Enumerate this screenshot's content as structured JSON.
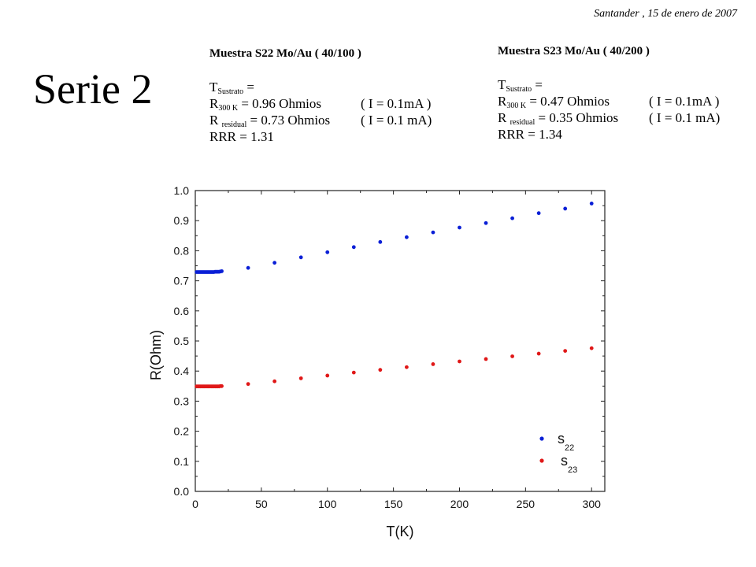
{
  "header": {
    "date": "Santander , 15 de enero de 2007",
    "title": "Serie 2"
  },
  "samples": [
    {
      "name": "Muestra S22 Mo/Au ( 40/100 )",
      "t_sustrato": {
        "symbol": "T",
        "sub": "Sustrato",
        "rest": " ="
      },
      "r300": {
        "symbol": "R",
        "sub": "300 K",
        "rest": " = 0.96 Ohmios",
        "cond": "( I = 0.1mA )"
      },
      "rres": {
        "symbol": "R ",
        "sub": "residual",
        "rest": " = 0.73 Ohmios",
        "cond": "( I = 0.1 mA)"
      },
      "rrr": "RRR = 1.31"
    },
    {
      "name": "Muestra S23 Mo/Au ( 40/200 )",
      "t_sustrato": {
        "symbol": "T",
        "sub": "Sustrato",
        "rest": " ="
      },
      "r300": {
        "symbol": "R",
        "sub": "300 K",
        "rest": " = 0.47 Ohmios",
        "cond": "( I = 0.1mA )"
      },
      "rres": {
        "symbol": "R ",
        "sub": "residual",
        "rest": " = 0.35 Ohmios",
        "cond": "( I = 0.1 mA)"
      },
      "rrr": "RRR = 1.34"
    }
  ],
  "chart_data": {
    "type": "scatter",
    "title": "",
    "xlabel": "T(K)",
    "ylabel": "R(Ohm)",
    "xlim": [
      0,
      310
    ],
    "ylim": [
      0,
      1.0
    ],
    "xticks": [
      0,
      50,
      100,
      150,
      200,
      250,
      300
    ],
    "yticks": [
      0.0,
      0.1,
      0.2,
      0.3,
      0.4,
      0.5,
      0.6,
      0.7,
      0.8,
      0.9,
      1.0
    ],
    "legend_position": "bottom-right",
    "series": [
      {
        "name": "s",
        "name_sub": "22",
        "color": "#0a1fd6",
        "x": [
          1,
          2,
          3,
          4,
          5,
          6,
          7,
          8,
          9,
          10,
          11,
          12,
          13,
          14,
          15,
          16,
          17,
          18,
          19,
          20,
          40,
          60,
          80,
          100,
          120,
          140,
          160,
          180,
          200,
          220,
          240,
          260,
          280,
          300
        ],
        "y": [
          0.729,
          0.729,
          0.729,
          0.729,
          0.729,
          0.729,
          0.729,
          0.729,
          0.729,
          0.729,
          0.729,
          0.729,
          0.729,
          0.729,
          0.73,
          0.73,
          0.73,
          0.73,
          0.731,
          0.732,
          0.743,
          0.76,
          0.778,
          0.795,
          0.812,
          0.829,
          0.845,
          0.861,
          0.877,
          0.892,
          0.908,
          0.925,
          0.94,
          0.957
        ]
      },
      {
        "name": "s",
        "name_sub": "23",
        "color": "#e01818",
        "x": [
          1,
          2,
          3,
          4,
          5,
          6,
          7,
          8,
          9,
          10,
          11,
          12,
          13,
          14,
          15,
          16,
          17,
          18,
          19,
          20,
          40,
          60,
          80,
          100,
          120,
          140,
          160,
          180,
          200,
          220,
          240,
          260,
          280,
          300
        ],
        "y": [
          0.349,
          0.349,
          0.349,
          0.349,
          0.349,
          0.349,
          0.349,
          0.349,
          0.349,
          0.349,
          0.349,
          0.349,
          0.349,
          0.349,
          0.349,
          0.349,
          0.349,
          0.349,
          0.35,
          0.35,
          0.357,
          0.366,
          0.376,
          0.385,
          0.395,
          0.404,
          0.413,
          0.423,
          0.432,
          0.44,
          0.449,
          0.458,
          0.467,
          0.476
        ]
      }
    ]
  }
}
